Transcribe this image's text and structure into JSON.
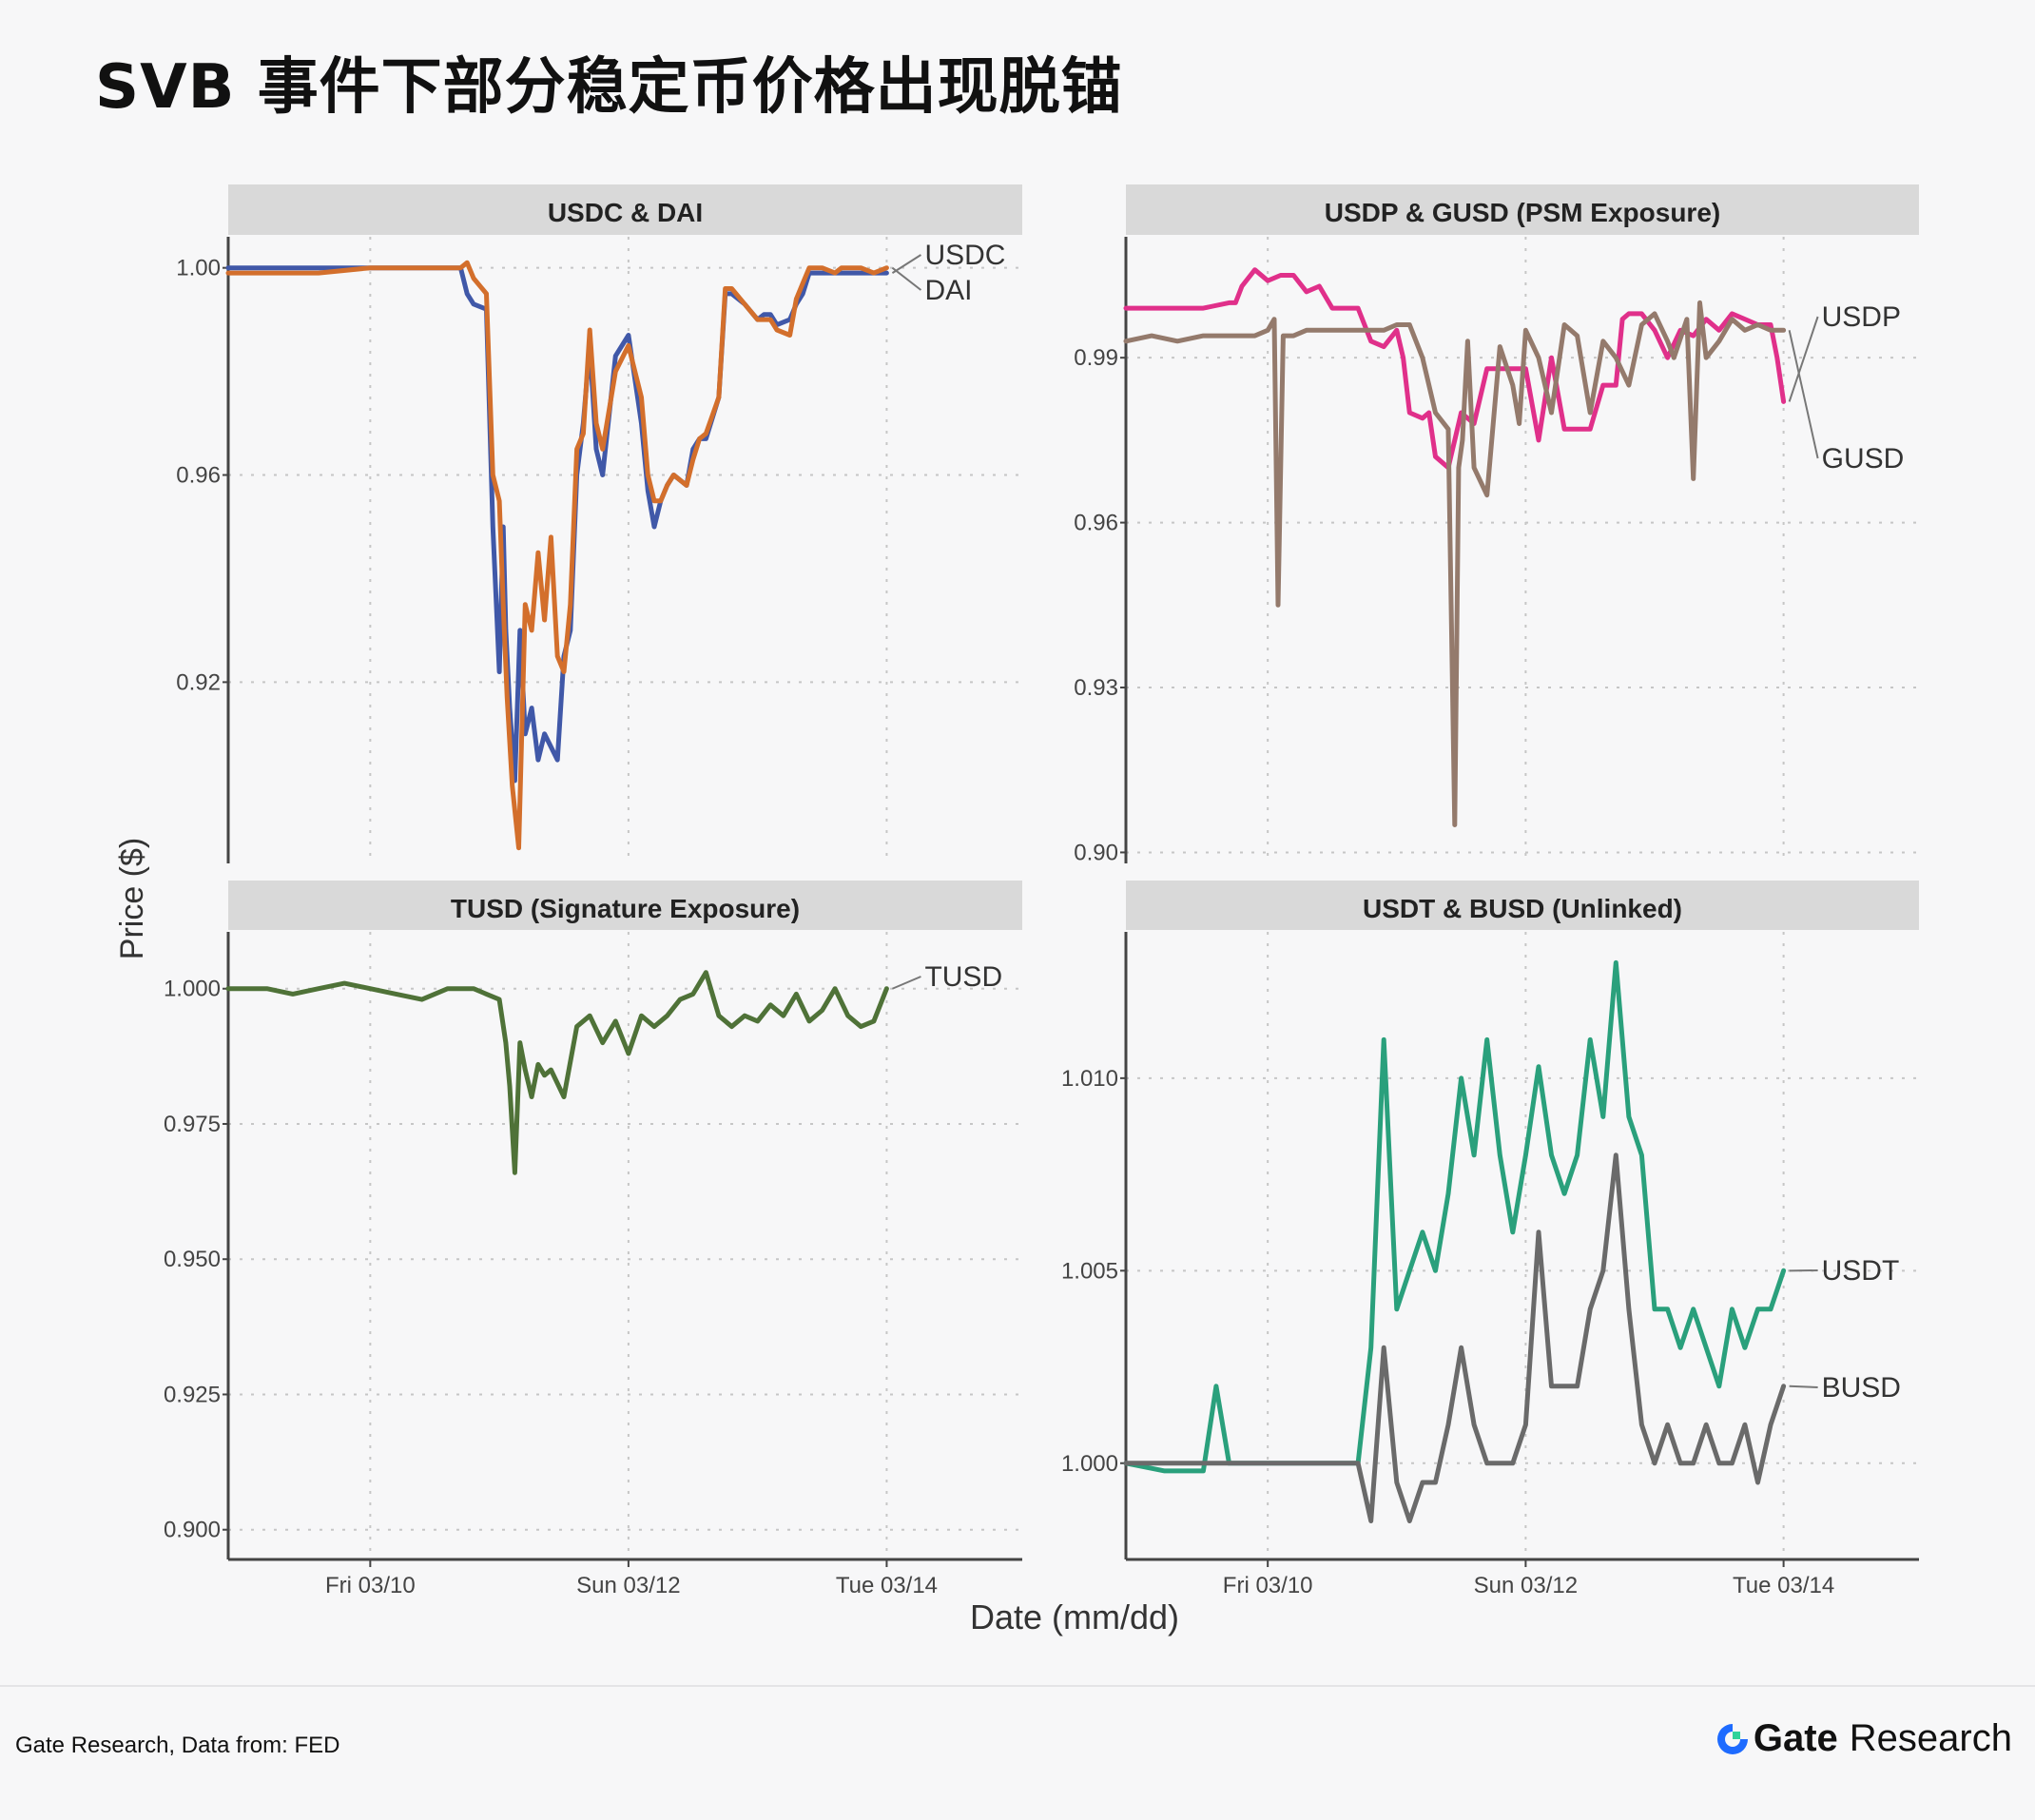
{
  "page": {
    "title": "SVB 事件下部分稳定币价格出现脱锚",
    "source": "Gate Research, Data from: FED",
    "brand_name": "Gate",
    "brand_suffix": "Research"
  },
  "colors": {
    "USDC": "#4058a8",
    "DAI": "#d36f2c",
    "USDP": "#e0308a",
    "GUSD": "#947a6c",
    "TUSD": "#4f7238",
    "USDT": "#2aa07c",
    "BUSD": "#6a6a6a",
    "strip": "#d9d9d9",
    "grid": "#c6c6c6",
    "axis": "#444444"
  },
  "chart_data": {
    "type": "line",
    "xlabel": "Date (mm/dd)",
    "ylabel": "Price ($)",
    "x_ticks": [
      "Fri 03/10",
      "Sun 03/12",
      "Tue 03/14"
    ],
    "x_tick_values": [
      1,
      3,
      5
    ],
    "x_range": [
      -0.1,
      6.05
    ],
    "panels": [
      {
        "title": "USDC & DAI",
        "ylim": [
          0.885,
          1.006
        ],
        "y_ticks": [
          1.0,
          0.96,
          0.92
        ],
        "y_tick_labels": [
          "1.00",
          "0.96",
          "0.92"
        ],
        "series": [
          {
            "name": "USDC",
            "x": [
              -0.1,
              0.3,
              0.6,
              1.0,
              1.4,
              1.7,
              1.75,
              1.8,
              1.9,
              1.95,
              2.0,
              2.03,
              2.05,
              2.08,
              2.12,
              2.16,
              2.2,
              2.25,
              2.3,
              2.35,
              2.45,
              2.5,
              2.55,
              2.6,
              2.65,
              2.7,
              2.75,
              2.8,
              2.9,
              3.0,
              3.1,
              3.15,
              3.2,
              3.25,
              3.3,
              3.35,
              3.45,
              3.5,
              3.55,
              3.6,
              3.7,
              3.75,
              3.8,
              3.9,
              4.0,
              4.05,
              4.1,
              4.15,
              4.25,
              4.3,
              4.35,
              4.4,
              4.5,
              4.6,
              4.65,
              4.7,
              4.8,
              4.9,
              5.0
            ],
            "y": [
              1.0,
              1.0,
              1.0,
              1.0,
              1.0,
              1.0,
              0.995,
              0.993,
              0.992,
              0.95,
              0.922,
              0.95,
              0.93,
              0.915,
              0.901,
              0.93,
              0.91,
              0.915,
              0.905,
              0.91,
              0.905,
              0.925,
              0.93,
              0.96,
              0.97,
              0.985,
              0.965,
              0.96,
              0.983,
              0.987,
              0.97,
              0.957,
              0.95,
              0.955,
              0.958,
              0.96,
              0.958,
              0.965,
              0.967,
              0.967,
              0.975,
              0.995,
              0.995,
              0.993,
              0.99,
              0.991,
              0.991,
              0.989,
              0.99,
              0.993,
              0.995,
              0.999,
              0.999,
              0.999,
              0.999,
              0.999,
              0.999,
              0.999,
              0.999
            ]
          },
          {
            "name": "DAI",
            "x": [
              -0.1,
              0.3,
              0.6,
              1.0,
              1.4,
              1.7,
              1.75,
              1.8,
              1.9,
              1.95,
              2.0,
              2.03,
              2.06,
              2.1,
              2.15,
              2.2,
              2.25,
              2.3,
              2.35,
              2.4,
              2.45,
              2.5,
              2.55,
              2.6,
              2.65,
              2.7,
              2.75,
              2.8,
              2.9,
              3.0,
              3.1,
              3.15,
              3.2,
              3.25,
              3.3,
              3.35,
              3.45,
              3.5,
              3.55,
              3.6,
              3.7,
              3.75,
              3.8,
              3.9,
              4.0,
              4.05,
              4.1,
              4.15,
              4.25,
              4.3,
              4.35,
              4.4,
              4.5,
              4.6,
              4.65,
              4.7,
              4.8,
              4.9,
              5.0
            ],
            "y": [
              0.999,
              0.999,
              0.999,
              1.0,
              1.0,
              1.0,
              1.001,
              0.998,
              0.995,
              0.96,
              0.955,
              0.935,
              0.917,
              0.9,
              0.888,
              0.935,
              0.93,
              0.945,
              0.932,
              0.948,
              0.925,
              0.922,
              0.935,
              0.965,
              0.968,
              0.988,
              0.97,
              0.965,
              0.98,
              0.985,
              0.975,
              0.96,
              0.955,
              0.955,
              0.958,
              0.96,
              0.958,
              0.963,
              0.967,
              0.968,
              0.975,
              0.996,
              0.996,
              0.993,
              0.99,
              0.99,
              0.99,
              0.988,
              0.987,
              0.994,
              0.997,
              1.0,
              1.0,
              0.999,
              1.0,
              1.0,
              1.0,
              0.999,
              1.0
            ]
          }
        ]
      },
      {
        "title": "USDP & GUSD (PSM Exposure)",
        "ylim": [
          0.898,
          1.012
        ],
        "y_ticks": [
          0.99,
          0.96,
          0.93,
          0.9
        ],
        "y_tick_labels": [
          "0.99",
          "0.96",
          "0.93",
          "0.90"
        ],
        "series": [
          {
            "name": "USDP",
            "x": [
              -0.1,
              0.1,
              0.3,
              0.5,
              0.7,
              0.75,
              0.8,
              0.9,
              1.0,
              1.1,
              1.2,
              1.3,
              1.4,
              1.5,
              1.6,
              1.7,
              1.8,
              1.9,
              2.0,
              2.05,
              2.1,
              2.2,
              2.25,
              2.3,
              2.4,
              2.5,
              2.6,
              2.7,
              2.75,
              2.8,
              2.9,
              3.0,
              3.1,
              3.2,
              3.3,
              3.4,
              3.5,
              3.6,
              3.7,
              3.75,
              3.8,
              3.9,
              4.0,
              4.1,
              4.2,
              4.3,
              4.4,
              4.5,
              4.6,
              4.7,
              4.8,
              4.9,
              4.95,
              5.0
            ],
            "y": [
              0.999,
              0.999,
              0.999,
              0.999,
              1.0,
              1.0,
              1.003,
              1.006,
              1.004,
              1.005,
              1.005,
              1.002,
              1.003,
              0.999,
              0.999,
              0.999,
              0.993,
              0.992,
              0.995,
              0.99,
              0.98,
              0.979,
              0.98,
              0.972,
              0.97,
              0.98,
              0.978,
              0.988,
              0.988,
              0.988,
              0.988,
              0.988,
              0.975,
              0.99,
              0.977,
              0.977,
              0.977,
              0.985,
              0.985,
              0.997,
              0.998,
              0.998,
              0.995,
              0.99,
              0.995,
              0.994,
              0.997,
              0.995,
              0.998,
              0.997,
              0.996,
              0.996,
              0.99,
              0.982
            ]
          },
          {
            "name": "GUSD",
            "x": [
              -0.1,
              0.1,
              0.3,
              0.5,
              0.7,
              0.9,
              1.0,
              1.05,
              1.08,
              1.12,
              1.2,
              1.3,
              1.4,
              1.5,
              1.6,
              1.8,
              1.9,
              2.0,
              2.1,
              2.2,
              2.3,
              2.4,
              2.45,
              2.48,
              2.51,
              2.55,
              2.6,
              2.7,
              2.8,
              2.9,
              2.95,
              3.0,
              3.1,
              3.2,
              3.3,
              3.4,
              3.5,
              3.6,
              3.7,
              3.8,
              3.9,
              4.0,
              4.1,
              4.15,
              4.25,
              4.3,
              4.35,
              4.4,
              4.5,
              4.6,
              4.7,
              4.8,
              4.9,
              5.0
            ],
            "y": [
              0.993,
              0.994,
              0.993,
              0.994,
              0.994,
              0.994,
              0.995,
              0.997,
              0.945,
              0.994,
              0.994,
              0.995,
              0.995,
              0.995,
              0.995,
              0.995,
              0.995,
              0.996,
              0.996,
              0.99,
              0.98,
              0.977,
              0.905,
              0.97,
              0.975,
              0.993,
              0.97,
              0.965,
              0.992,
              0.985,
              0.978,
              0.995,
              0.99,
              0.98,
              0.996,
              0.994,
              0.98,
              0.993,
              0.99,
              0.985,
              0.996,
              0.998,
              0.993,
              0.99,
              0.997,
              0.968,
              1.0,
              0.99,
              0.993,
              0.997,
              0.995,
              0.996,
              0.995,
              0.995
            ]
          }
        ]
      },
      {
        "title": "TUSD (Signature Exposure)",
        "ylim": [
          0.8945,
          1.0105
        ],
        "y_ticks": [
          1.0,
          0.975,
          0.95,
          0.925,
          0.9
        ],
        "y_tick_labels": [
          "1.000",
          "0.975",
          "0.950",
          "0.925",
          "0.900"
        ],
        "series": [
          {
            "name": "TUSD",
            "x": [
              -0.1,
              0.2,
              0.4,
              0.6,
              0.8,
              1.0,
              1.2,
              1.4,
              1.6,
              1.8,
              1.9,
              2.0,
              2.05,
              2.08,
              2.12,
              2.16,
              2.2,
              2.25,
              2.3,
              2.35,
              2.4,
              2.5,
              2.6,
              2.7,
              2.8,
              2.9,
              3.0,
              3.1,
              3.2,
              3.3,
              3.4,
              3.5,
              3.6,
              3.7,
              3.8,
              3.9,
              4.0,
              4.1,
              4.2,
              4.3,
              4.4,
              4.5,
              4.6,
              4.7,
              4.8,
              4.9,
              5.0
            ],
            "y": [
              1.0,
              1.0,
              0.999,
              1.0,
              1.001,
              1.0,
              0.999,
              0.998,
              1.0,
              1.0,
              0.999,
              0.998,
              0.99,
              0.982,
              0.966,
              0.99,
              0.985,
              0.98,
              0.986,
              0.984,
              0.985,
              0.98,
              0.993,
              0.995,
              0.99,
              0.994,
              0.988,
              0.995,
              0.993,
              0.995,
              0.998,
              0.999,
              1.003,
              0.995,
              0.993,
              0.995,
              0.994,
              0.997,
              0.995,
              0.999,
              0.994,
              0.996,
              1.0,
              0.995,
              0.993,
              0.994,
              1.0
            ]
          }
        ]
      },
      {
        "title": "USDT & BUSD (Unlinked)",
        "ylim": [
          0.9975,
          1.0138
        ],
        "y_ticks": [
          1.01,
          1.005,
          1.0
        ],
        "y_tick_labels": [
          "1.010",
          "1.005",
          "1.000"
        ],
        "series": [
          {
            "name": "USDT",
            "x": [
              -0.1,
              0.2,
              0.5,
              0.6,
              0.7,
              0.8,
              1.0,
              1.2,
              1.4,
              1.6,
              1.7,
              1.8,
              1.9,
              2.0,
              2.1,
              2.2,
              2.3,
              2.4,
              2.5,
              2.6,
              2.7,
              2.8,
              2.9,
              3.0,
              3.1,
              3.2,
              3.3,
              3.4,
              3.5,
              3.6,
              3.7,
              3.8,
              3.9,
              4.0,
              4.1,
              4.2,
              4.3,
              4.4,
              4.5,
              4.6,
              4.7,
              4.8,
              4.9,
              5.0
            ],
            "y": [
              1.0,
              0.9998,
              0.9998,
              1.002,
              1.0,
              1.0,
              1.0,
              1.0,
              1.0,
              1.0,
              1.0,
              1.003,
              1.011,
              1.004,
              1.005,
              1.006,
              1.005,
              1.007,
              1.01,
              1.008,
              1.011,
              1.008,
              1.006,
              1.008,
              1.0103,
              1.008,
              1.007,
              1.008,
              1.011,
              1.009,
              1.013,
              1.009,
              1.008,
              1.004,
              1.004,
              1.003,
              1.004,
              1.003,
              1.002,
              1.004,
              1.003,
              1.004,
              1.004,
              1.005
            ]
          },
          {
            "name": "BUSD",
            "x": [
              -0.1,
              0.2,
              0.5,
              0.6,
              0.8,
              1.0,
              1.2,
              1.4,
              1.6,
              1.7,
              1.8,
              1.9,
              2.0,
              2.1,
              2.2,
              2.3,
              2.4,
              2.5,
              2.6,
              2.7,
              2.8,
              2.9,
              3.0,
              3.1,
              3.2,
              3.3,
              3.4,
              3.5,
              3.6,
              3.7,
              3.8,
              3.9,
              4.0,
              4.1,
              4.2,
              4.3,
              4.4,
              4.5,
              4.6,
              4.7,
              4.8,
              4.9,
              5.0
            ],
            "y": [
              1.0,
              1.0,
              1.0,
              1.0,
              1.0,
              1.0,
              1.0,
              1.0,
              1.0,
              1.0,
              0.9985,
              1.003,
              0.9995,
              0.9985,
              0.9995,
              0.9995,
              1.001,
              1.003,
              1.001,
              1.0,
              1.0,
              1.0,
              1.001,
              1.006,
              1.002,
              1.002,
              1.002,
              1.004,
              1.005,
              1.008,
              1.004,
              1.001,
              1.0,
              1.001,
              1.0,
              1.0,
              1.001,
              1.0,
              1.0,
              1.001,
              0.9995,
              1.001,
              1.002
            ]
          }
        ]
      }
    ]
  }
}
